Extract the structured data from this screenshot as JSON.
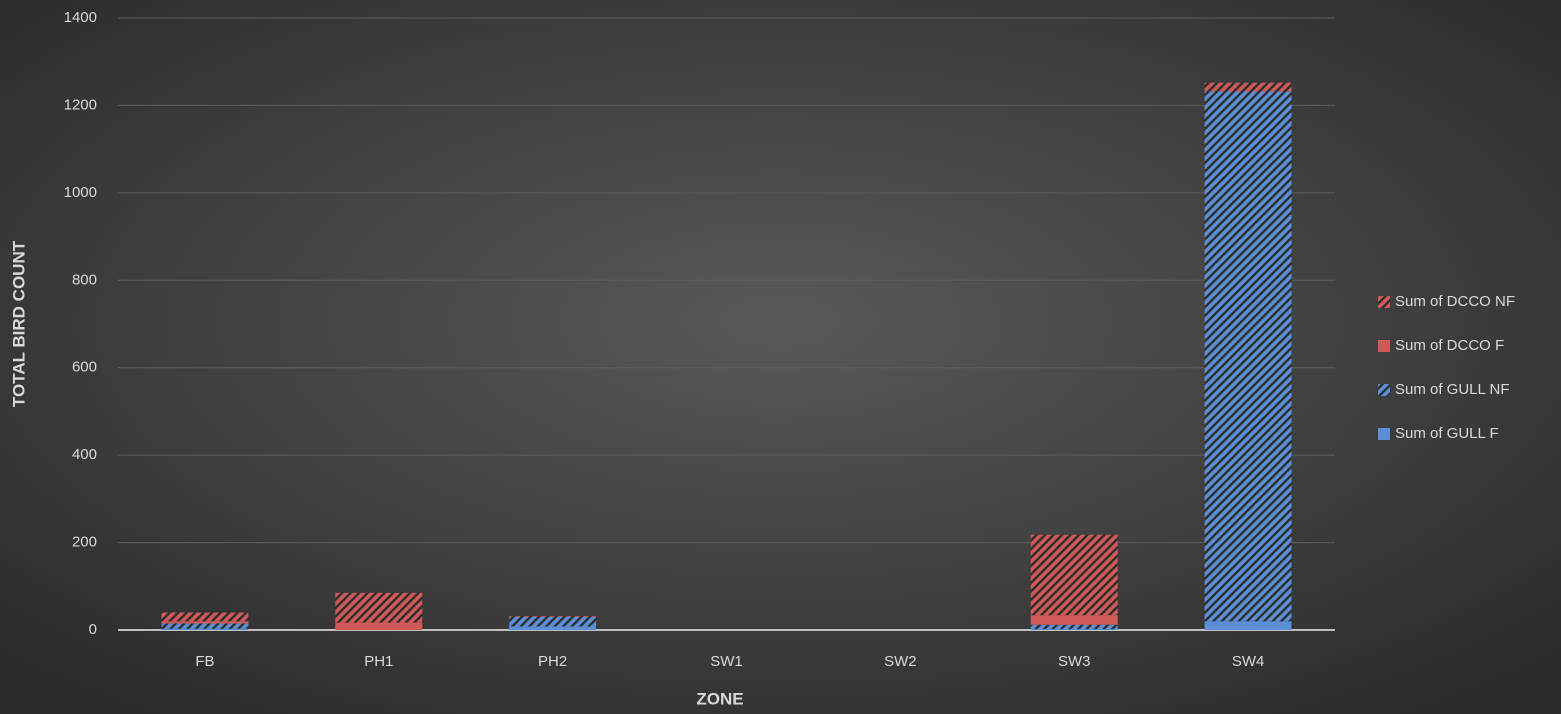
{
  "chart_data": {
    "type": "stacked_bar",
    "x_label": "ZONE",
    "y_label": "TOTAL BIRD COUNT",
    "categories": [
      "FB",
      "PH1",
      "PH2",
      "SW1",
      "SW2",
      "SW3",
      "SW4"
    ],
    "series": [
      {
        "name": "Sum of GULL F",
        "color": "#5b8fd6",
        "hatched": false,
        "values": [
          3,
          0,
          8,
          0,
          0,
          2,
          20
        ]
      },
      {
        "name": "Sum of GULL NF",
        "color": "#5b8fd6",
        "hatched": true,
        "values": [
          12,
          0,
          22,
          0,
          0,
          10,
          1212
        ]
      },
      {
        "name": "Sum of DCCO F",
        "color": "#d05a57",
        "hatched": false,
        "values": [
          5,
          17,
          0,
          0,
          0,
          22,
          0
        ]
      },
      {
        "name": "Sum of DCCO NF",
        "color": "#d05a57",
        "hatched": true,
        "values": [
          20,
          68,
          2,
          0,
          0,
          184,
          20
        ]
      }
    ],
    "ylim": [
      0,
      1400
    ],
    "yticks": [
      0,
      200,
      400,
      600,
      800,
      1000,
      1200,
      1400
    ],
    "grid": true,
    "legend": "right"
  }
}
